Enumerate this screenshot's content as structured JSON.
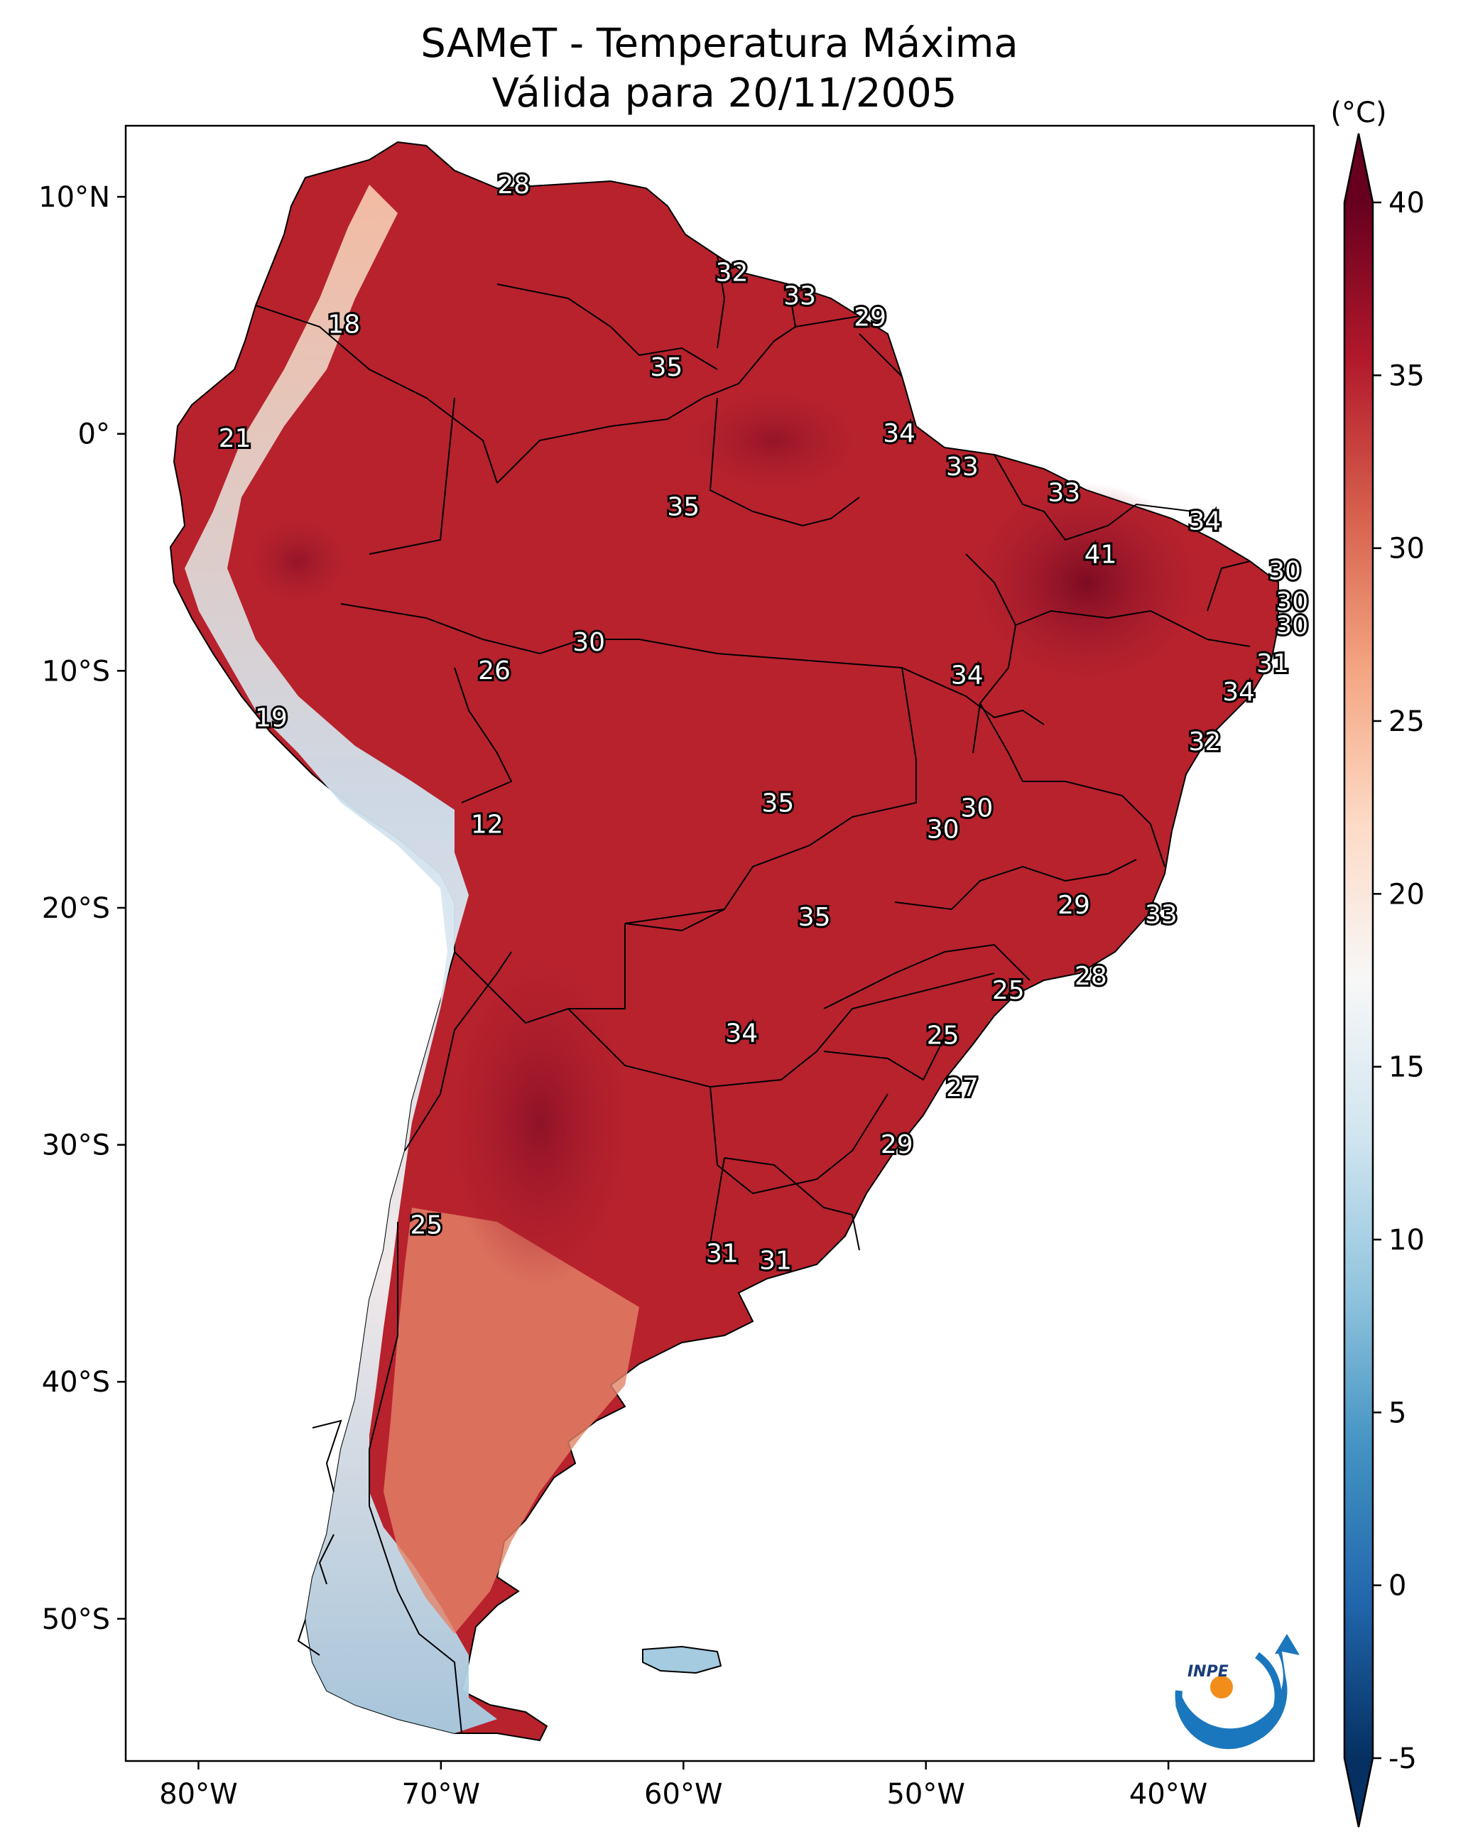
{
  "title": {
    "line1": "SAMeT - Temperatura Máxima",
    "line2": "Válida para 20/11/2005"
  },
  "axes": {
    "lon_ticks": [
      "80°W",
      "70°W",
      "60°W",
      "50°W",
      "40°W"
    ],
    "lat_ticks": [
      "10°N",
      "0°",
      "10°S",
      "20°S",
      "30°S",
      "40°S",
      "50°S"
    ],
    "extent": {
      "lon": [
        -83,
        -34
      ],
      "lat": [
        -56,
        13
      ]
    }
  },
  "colorbar": {
    "unit": "(°C)",
    "ticks": [
      "40",
      "35",
      "30",
      "25",
      "20",
      "15",
      "10",
      "5",
      "0",
      "-5"
    ],
    "range": [
      -5,
      40
    ],
    "extend": "both",
    "colormap": [
      "#67001f",
      "#b2182b",
      "#d6604d",
      "#f4a582",
      "#fddbc7",
      "#f7f7f7",
      "#d1e5f0",
      "#92c5de",
      "#4393c3",
      "#2166ac",
      "#053061"
    ]
  },
  "stations": [
    {
      "label": "28",
      "lon": -67,
      "lat": 10.5
    },
    {
      "label": "18",
      "lon": -74,
      "lat": 4.6
    },
    {
      "label": "32",
      "lon": -58,
      "lat": 6.8
    },
    {
      "label": "33",
      "lon": -55.2,
      "lat": 5.8
    },
    {
      "label": "29",
      "lon": -52.3,
      "lat": 4.9
    },
    {
      "label": "35",
      "lon": -60.7,
      "lat": 2.8
    },
    {
      "label": "21",
      "lon": -78.5,
      "lat": -0.2
    },
    {
      "label": "34",
      "lon": -51.1,
      "lat": 0
    },
    {
      "label": "33",
      "lon": -48.5,
      "lat": -1.4
    },
    {
      "label": "33",
      "lon": -44.3,
      "lat": -2.5
    },
    {
      "label": "35",
      "lon": -60,
      "lat": -3.1
    },
    {
      "label": "34",
      "lon": -38.5,
      "lat": -3.7
    },
    {
      "label": "41",
      "lon": -42.8,
      "lat": -5.1
    },
    {
      "label": "30",
      "lon": -35.2,
      "lat": -5.8
    },
    {
      "label": "30",
      "lon": -34.9,
      "lat": -7.1
    },
    {
      "label": "30",
      "lon": -34.9,
      "lat": -8.1
    },
    {
      "label": "30",
      "lon": -63.9,
      "lat": -8.8
    },
    {
      "label": "26",
      "lon": -67.8,
      "lat": -10
    },
    {
      "label": "31",
      "lon": -35.7,
      "lat": -9.7
    },
    {
      "label": "34",
      "lon": -48.3,
      "lat": -10.2
    },
    {
      "label": "34",
      "lon": -37.1,
      "lat": -10.9
    },
    {
      "label": "19",
      "lon": -77,
      "lat": -12
    },
    {
      "label": "32",
      "lon": -38.5,
      "lat": -13
    },
    {
      "label": "35",
      "lon": -56.1,
      "lat": -15.6
    },
    {
      "label": "30",
      "lon": -47.9,
      "lat": -15.8
    },
    {
      "label": "30",
      "lon": -49.3,
      "lat": -16.7
    },
    {
      "label": "12",
      "lon": -68.1,
      "lat": -16.5
    },
    {
      "label": "29",
      "lon": -43.9,
      "lat": -19.9
    },
    {
      "label": "33",
      "lon": -40.3,
      "lat": -20.3
    },
    {
      "label": "35",
      "lon": -54.6,
      "lat": -20.4
    },
    {
      "label": "28",
      "lon": -43.2,
      "lat": -22.9
    },
    {
      "label": "25",
      "lon": -46.6,
      "lat": -23.5
    },
    {
      "label": "34",
      "lon": -57.6,
      "lat": -25.3
    },
    {
      "label": "25",
      "lon": -49.3,
      "lat": -25.4
    },
    {
      "label": "27",
      "lon": -48.5,
      "lat": -27.6
    },
    {
      "label": "29",
      "lon": -51.2,
      "lat": -30
    },
    {
      "label": "25",
      "lon": -70.6,
      "lat": -33.4
    },
    {
      "label": "31",
      "lon": -58.4,
      "lat": -34.6
    },
    {
      "label": "31",
      "lon": -56.2,
      "lat": -34.9
    }
  ]
}
